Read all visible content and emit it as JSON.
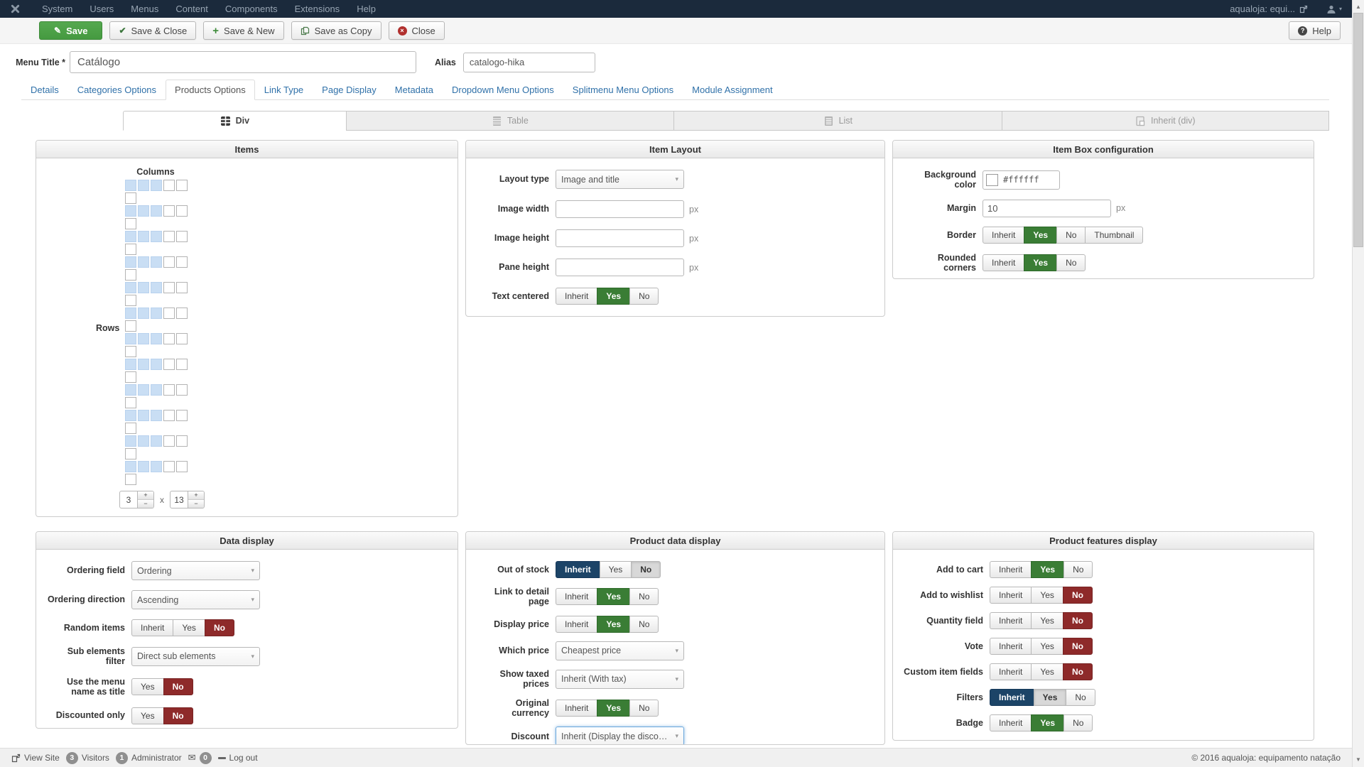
{
  "colors": {
    "green_active": "#3a7d35",
    "red_active": "#8e2a2a",
    "navy_active": "#1c4467",
    "link_blue": "#3071a9",
    "topnav_bg": "#1b2a3c",
    "grid_selected": "#c9def4"
  },
  "topnav": {
    "menu_items": [
      "System",
      "Users",
      "Menus",
      "Content",
      "Components",
      "Extensions",
      "Help"
    ],
    "site_name": "aqualoja: equi..."
  },
  "toolbar": {
    "save": "Save",
    "save_and_close": "Save & Close",
    "save_and_new": "Save & New",
    "save_as_copy": "Save as Copy",
    "close": "Close",
    "help": "Help"
  },
  "title_row": {
    "menu_title_label": "Menu Title *",
    "menu_title_value": "Catálogo",
    "alias_label": "Alias",
    "alias_value": "catalogo-hika"
  },
  "tabs": [
    {
      "label": "Details",
      "active": false
    },
    {
      "label": "Categories Options",
      "active": false
    },
    {
      "label": "Products Options",
      "active": true
    },
    {
      "label": "Link Type",
      "active": false
    },
    {
      "label": "Page Display",
      "active": false
    },
    {
      "label": "Metadata",
      "active": false
    },
    {
      "label": "Dropdown Menu Options",
      "active": false
    },
    {
      "label": "Splitmenu Menu Options",
      "active": false
    },
    {
      "label": "Module Assignment",
      "active": false
    }
  ],
  "subtabs": [
    {
      "label": "Div",
      "active": true
    },
    {
      "label": "Table",
      "active": false
    },
    {
      "label": "List",
      "active": false
    },
    {
      "label": "Inherit (div)",
      "active": false
    }
  ],
  "items_panel": {
    "title": "Items",
    "columns_label": "Columns",
    "rows_label": "Rows",
    "grid": {
      "row_groups": 12,
      "cols_per_row": 5,
      "selected_per_row": 3,
      "trailing_cell": true
    },
    "columns_value": "3",
    "multiply_label": "x",
    "rows_value": "13",
    "stepper": {
      "increase": "+",
      "decrease": "−"
    }
  },
  "item_layout_panel": {
    "title": "Item Layout",
    "layout_type": {
      "label": "Layout type",
      "value": "Image and title"
    },
    "image_width": {
      "label": "Image width",
      "value": "",
      "suffix": "px"
    },
    "image_height": {
      "label": "Image height",
      "value": "",
      "suffix": "px"
    },
    "pane_height": {
      "label": "Pane height",
      "value": "",
      "suffix": "px"
    },
    "text_centered": {
      "label": "Text centered",
      "options": [
        {
          "label": "Inherit"
        },
        {
          "label": "Yes",
          "state": "green"
        },
        {
          "label": "No"
        }
      ]
    }
  },
  "item_box_panel": {
    "title": "Item Box configuration",
    "background_color": {
      "label": "Background color",
      "value": "#ffffff",
      "swatch": "#ffffff"
    },
    "margin": {
      "label": "Margin",
      "value": "10",
      "suffix": "px"
    },
    "border": {
      "label": "Border",
      "options": [
        {
          "label": "Inherit"
        },
        {
          "label": "Yes",
          "state": "green"
        },
        {
          "label": "No"
        },
        {
          "label": "Thumbnail"
        }
      ]
    },
    "rounded_corners": {
      "label": "Rounded corners",
      "options": [
        {
          "label": "Inherit"
        },
        {
          "label": "Yes",
          "state": "green"
        },
        {
          "label": "No"
        }
      ]
    }
  },
  "data_display_panel": {
    "title": "Data display",
    "ordering_field": {
      "label": "Ordering field",
      "value": "Ordering"
    },
    "ordering_direction": {
      "label": "Ordering direction",
      "value": "Ascending"
    },
    "random_items": {
      "label": "Random items",
      "options": [
        {
          "label": "Inherit"
        },
        {
          "label": "Yes"
        },
        {
          "label": "No",
          "state": "red"
        }
      ]
    },
    "sub_elements_filter": {
      "label": "Sub elements filter",
      "value": "Direct sub elements"
    },
    "use_menu_name": {
      "label": "Use the menu name as title",
      "options": [
        {
          "label": "Yes"
        },
        {
          "label": "No",
          "state": "red"
        }
      ]
    },
    "discounted_only": {
      "label": "Discounted only",
      "options": [
        {
          "label": "Yes"
        },
        {
          "label": "No",
          "state": "red"
        }
      ]
    }
  },
  "product_data_panel": {
    "title": "Product data display",
    "out_of_stock": {
      "label": "Out of stock",
      "options": [
        {
          "label": "Inherit",
          "state": "navy"
        },
        {
          "label": "Yes"
        },
        {
          "label": "No",
          "state": "gray"
        }
      ]
    },
    "link_to_detail": {
      "label": "Link to detail page",
      "options": [
        {
          "label": "Inherit"
        },
        {
          "label": "Yes",
          "state": "green"
        },
        {
          "label": "No"
        }
      ]
    },
    "display_price": {
      "label": "Display price",
      "options": [
        {
          "label": "Inherit"
        },
        {
          "label": "Yes",
          "state": "green"
        },
        {
          "label": "No"
        }
      ]
    },
    "which_price": {
      "label": "Which price",
      "value": "Cheapest price"
    },
    "show_taxed_prices": {
      "label": "Show taxed prices",
      "value": "Inherit (With tax)"
    },
    "original_currency": {
      "label": "Original currency",
      "options": [
        {
          "label": "Inherit"
        },
        {
          "label": "Yes",
          "state": "green"
        },
        {
          "label": "No"
        }
      ]
    },
    "discount": {
      "label": "Discount",
      "value": "Inherit (Display the discount...",
      "focused": true
    }
  },
  "product_features_panel": {
    "title": "Product features display",
    "add_to_cart": {
      "label": "Add to cart",
      "options": [
        {
          "label": "Inherit"
        },
        {
          "label": "Yes",
          "state": "green"
        },
        {
          "label": "No"
        }
      ]
    },
    "add_to_wishlist": {
      "label": "Add to wishlist",
      "options": [
        {
          "label": "Inherit"
        },
        {
          "label": "Yes"
        },
        {
          "label": "No",
          "state": "red"
        }
      ]
    },
    "quantity_field": {
      "label": "Quantity field",
      "options": [
        {
          "label": "Inherit"
        },
        {
          "label": "Yes"
        },
        {
          "label": "No",
          "state": "red"
        }
      ]
    },
    "vote": {
      "label": "Vote",
      "options": [
        {
          "label": "Inherit"
        },
        {
          "label": "Yes"
        },
        {
          "label": "No",
          "state": "red"
        }
      ]
    },
    "custom_item_fields": {
      "label": "Custom item fields",
      "options": [
        {
          "label": "Inherit"
        },
        {
          "label": "Yes"
        },
        {
          "label": "No",
          "state": "red"
        }
      ]
    },
    "filters": {
      "label": "Filters",
      "options": [
        {
          "label": "Inherit",
          "state": "navy"
        },
        {
          "label": "Yes",
          "state": "gray"
        },
        {
          "label": "No"
        }
      ]
    },
    "badge": {
      "label": "Badge",
      "options": [
        {
          "label": "Inherit"
        },
        {
          "label": "Yes",
          "state": "green"
        },
        {
          "label": "No"
        }
      ]
    }
  },
  "statusbar": {
    "view_site": "View Site",
    "visitors_count": "3",
    "visitors_label": "Visitors",
    "admin_count": "1",
    "admin_label": "Administrator",
    "messages_count": "0",
    "log_out": "Log out",
    "copyright": "© 2016 aqualoja: equipamento natação"
  }
}
